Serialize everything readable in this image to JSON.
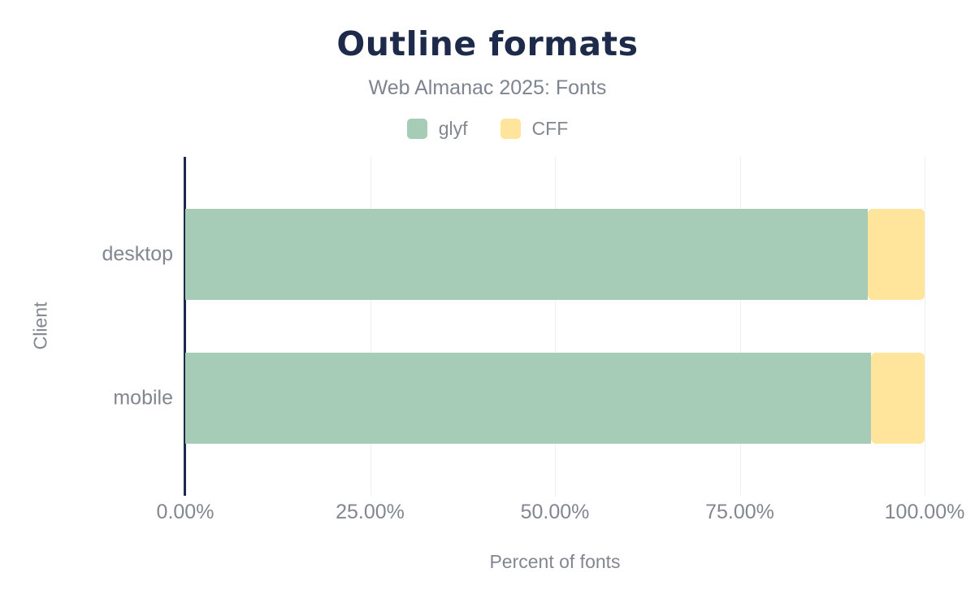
{
  "chart": {
    "title": "Outline formats",
    "subtitle": "Web Almanac 2025: Fonts"
  },
  "chart_data": {
    "type": "bar",
    "orientation": "horizontal",
    "stacked": true,
    "title": "Outline formats",
    "subtitle": "Web Almanac 2025: Fonts",
    "categories": [
      "desktop",
      "mobile"
    ],
    "series": [
      {
        "name": "glyf",
        "color": "#a6cbb7",
        "values": [
          92.3,
          92.7
        ]
      },
      {
        "name": "CFF",
        "color": "#ffe49c",
        "values": [
          7.7,
          7.3
        ]
      }
    ],
    "xlabel": "Percent of fonts",
    "ylabel": "Client",
    "xlim": [
      0,
      100
    ],
    "x_ticks": [
      "0.00%",
      "25.00%",
      "50.00%",
      "75.00%",
      "100.00%"
    ],
    "grid": true,
    "legend_position": "top"
  },
  "colors": {
    "title": "#1e2a4a",
    "axis_line": "#1c2a49",
    "text_gray": "#82878f",
    "gridline": "#efefef",
    "background": "#ffffff",
    "series_glyf": "#a6cbb7",
    "series_cff": "#ffe49c"
  }
}
